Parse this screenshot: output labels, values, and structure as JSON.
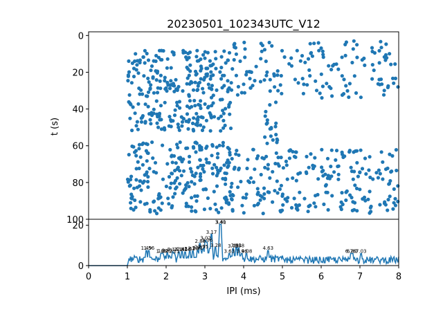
{
  "chart_data": [
    {
      "type": "scatter",
      "title": "20230501_102343UTC_V12",
      "xlabel": "",
      "ylabel": "t (s)",
      "xlim": [
        0,
        8
      ],
      "ylim": [
        100,
        -2
      ],
      "y_inverted": true,
      "yticks": [
        0,
        20,
        40,
        60,
        80,
        100
      ],
      "color": "#1f77b4",
      "point_clusters": [
        {
          "x_range": [
            1.0,
            3.7
          ],
          "y_range": [
            8,
            52
          ],
          "count": 300
        },
        {
          "x_range": [
            3.7,
            8.0
          ],
          "y_range": [
            3,
            35
          ],
          "count": 150
        },
        {
          "x_range": [
            1.0,
            3.8
          ],
          "y_range": [
            58,
            97
          ],
          "count": 240
        },
        {
          "x_range": [
            3.8,
            8.0
          ],
          "y_range": [
            62,
            97
          ],
          "count": 220
        },
        {
          "x_range": [
            4.5,
            4.9
          ],
          "y_range": [
            35,
            62
          ],
          "count": 20
        }
      ]
    },
    {
      "type": "line",
      "xlabel": "IPI (ms)",
      "ylabel": "",
      "xlim": [
        0,
        8
      ],
      "ylim": [
        0,
        23
      ],
      "xticks": [
        0,
        1,
        2,
        3,
        4,
        5,
        6,
        7,
        8
      ],
      "yticks": [
        0,
        20
      ],
      "color": "#1f77b4",
      "peaks": [
        {
          "x": 1.49,
          "y": 7.5
        },
        {
          "x": 1.56,
          "y": 7.5
        },
        {
          "x": 1.88,
          "y": 6.0
        },
        {
          "x": 1.92,
          "y": 6.2
        },
        {
          "x": 2.03,
          "y": 6.3
        },
        {
          "x": 2.17,
          "y": 6.8
        },
        {
          "x": 2.21,
          "y": 6.0
        },
        {
          "x": 2.34,
          "y": 6.8
        },
        {
          "x": 2.41,
          "y": 7.0
        },
        {
          "x": 2.5,
          "y": 6.8
        },
        {
          "x": 2.61,
          "y": 7.2
        },
        {
          "x": 2.7,
          "y": 7.3
        },
        {
          "x": 2.81,
          "y": 7.5
        },
        {
          "x": 2.87,
          "y": 8.0
        },
        {
          "x": 2.9,
          "y": 7.6
        },
        {
          "x": 2.95,
          "y": 8.2
        },
        {
          "x": 2.88,
          "y": 11.0
        },
        {
          "x": 3.02,
          "y": 12.5
        },
        {
          "x": 3.06,
          "y": 11.5
        },
        {
          "x": 3.17,
          "y": 15.5
        },
        {
          "x": 3.28,
          "y": 9.0
        },
        {
          "x": 3.4,
          "y": 20.5
        },
        {
          "x": 3.41,
          "y": 20.5
        },
        {
          "x": 3.63,
          "y": 6.0
        },
        {
          "x": 3.73,
          "y": 8.5
        },
        {
          "x": 3.81,
          "y": 9.0
        },
        {
          "x": 3.88,
          "y": 8.8
        },
        {
          "x": 3.96,
          "y": 6.0
        },
        {
          "x": 4.08,
          "y": 6.0
        },
        {
          "x": 4.63,
          "y": 7.5
        },
        {
          "x": 6.76,
          "y": 6.0
        },
        {
          "x": 6.8,
          "y": 6.0
        },
        {
          "x": 7.03,
          "y": 6.0
        }
      ],
      "peak_labels": [
        {
          "x": 1.49,
          "y": 7.5,
          "text": "1.49"
        },
        {
          "x": 1.56,
          "y": 7.5,
          "text": "1.56"
        },
        {
          "x": 1.88,
          "y": 6.0,
          "text": "1.88"
        },
        {
          "x": 1.92,
          "y": 6.2,
          "text": "1.92"
        },
        {
          "x": 2.03,
          "y": 6.3,
          "text": "2.03"
        },
        {
          "x": 2.17,
          "y": 6.8,
          "text": "2.17"
        },
        {
          "x": 2.21,
          "y": 6.0,
          "text": "2.21"
        },
        {
          "x": 2.34,
          "y": 6.8,
          "text": "2.34"
        },
        {
          "x": 2.41,
          "y": 7.0,
          "text": "2.41"
        },
        {
          "x": 2.5,
          "y": 6.8,
          "text": "2.50"
        },
        {
          "x": 2.61,
          "y": 7.2,
          "text": "2.61"
        },
        {
          "x": 2.7,
          "y": 7.3,
          "text": "2.70"
        },
        {
          "x": 2.81,
          "y": 7.5,
          "text": "2.81"
        },
        {
          "x": 2.87,
          "y": 8.0,
          "text": "2.87"
        },
        {
          "x": 2.95,
          "y": 8.2,
          "text": "2.95"
        },
        {
          "x": 2.88,
          "y": 11.0,
          "text": "2.88"
        },
        {
          "x": 3.02,
          "y": 12.5,
          "text": "3.02"
        },
        {
          "x": 3.06,
          "y": 11.5,
          "text": "3.06"
        },
        {
          "x": 3.17,
          "y": 15.5,
          "text": "3.17"
        },
        {
          "x": 3.28,
          "y": 9.0,
          "text": "3.28"
        },
        {
          "x": 3.4,
          "y": 20.5,
          "text": "3.40"
        },
        {
          "x": 3.41,
          "y": 20.5,
          "text": "3.41"
        },
        {
          "x": 3.63,
          "y": 6.0,
          "text": "3.63"
        },
        {
          "x": 3.73,
          "y": 8.5,
          "text": "3.73"
        },
        {
          "x": 3.81,
          "y": 9.0,
          "text": "3.81"
        },
        {
          "x": 3.88,
          "y": 8.8,
          "text": "3.88"
        },
        {
          "x": 3.96,
          "y": 6.0,
          "text": "3.96"
        },
        {
          "x": 4.08,
          "y": 6.0,
          "text": "4.08"
        },
        {
          "x": 4.63,
          "y": 7.5,
          "text": "4.63"
        },
        {
          "x": 6.76,
          "y": 6.0,
          "text": "6.76"
        },
        {
          "x": 6.8,
          "y": 6.0,
          "text": "6.80"
        },
        {
          "x": 7.03,
          "y": 6.0,
          "text": "7.03"
        }
      ]
    }
  ]
}
